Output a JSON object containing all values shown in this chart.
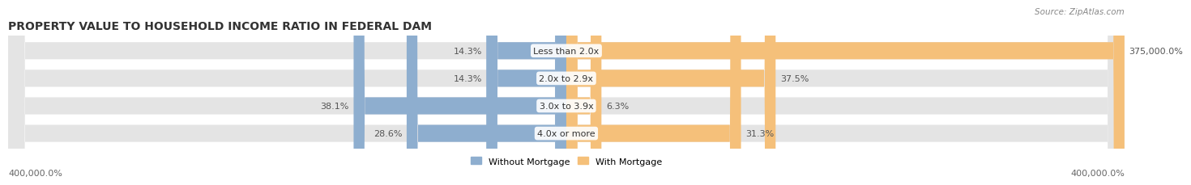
{
  "title": "PROPERTY VALUE TO HOUSEHOLD INCOME RATIO IN FEDERAL DAM",
  "source_text": "Source: ZipAtlas.com",
  "categories": [
    "Less than 2.0x",
    "2.0x to 2.9x",
    "3.0x to 3.9x",
    "4.0x or more"
  ],
  "without_mortgage": [
    14.3,
    14.3,
    38.1,
    28.6
  ],
  "with_mortgage": [
    375000.0,
    37.5,
    6.3,
    31.3
  ],
  "with_mortgage_labels": [
    "375,000.0%",
    "37.5%",
    "6.3%",
    "31.3%"
  ],
  "without_mortgage_labels": [
    "14.3%",
    "14.3%",
    "38.1%",
    "28.6%"
  ],
  "color_without": "#8eaecf",
  "color_with": "#f5c07a",
  "bar_background": "#e4e4e4",
  "axis_label_left": "400,000.0%",
  "axis_label_right": "400,000.0%",
  "legend_without": "Without Mortgage",
  "legend_with": "With Mortgage",
  "xlim": 400000,
  "title_fontsize": 10,
  "label_fontsize": 8,
  "source_fontsize": 7.5
}
